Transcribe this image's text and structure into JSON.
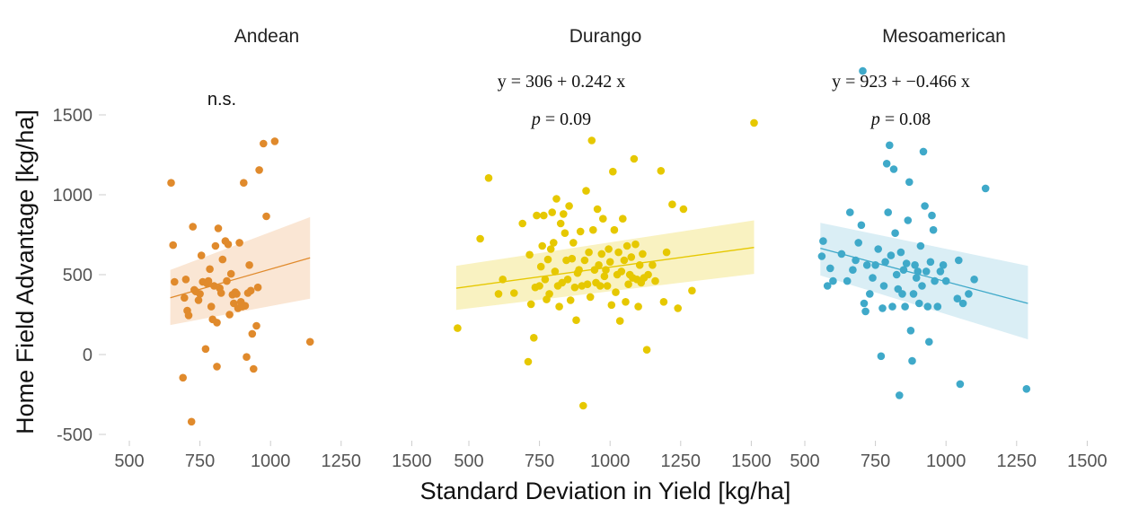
{
  "chart_data": {
    "type": "scatter",
    "xlabel": "Standard Deviation in Yield [kg/ha]",
    "ylabel": "Home Field Advantage [kg/ha]",
    "y_ticks": [
      "1500",
      "1000",
      "500",
      "0",
      "-500"
    ],
    "x_ticks": [
      "500",
      "750",
      "1000",
      "1250",
      "1500"
    ],
    "xlim": [
      400,
      1500
    ],
    "ylim": [
      -570,
      1900
    ],
    "grid": false,
    "legend": "none",
    "panels": [
      {
        "title": "Andean",
        "color": "#E08A2C",
        "band_color": "#F9E2CC",
        "annotation": "n.s.",
        "fit": {
          "x": [
            645,
            1140
          ],
          "y": [
            355,
            605
          ],
          "lo": [
            185,
            350
          ],
          "hi": [
            530,
            860
          ]
        },
        "points": [
          [
            648,
            1075
          ],
          [
            655,
            685
          ],
          [
            660,
            455
          ],
          [
            690,
            -145
          ],
          [
            695,
            355
          ],
          [
            700,
            470
          ],
          [
            705,
            275
          ],
          [
            710,
            245
          ],
          [
            720,
            -420
          ],
          [
            725,
            800
          ],
          [
            730,
            405
          ],
          [
            735,
            395
          ],
          [
            745,
            340
          ],
          [
            750,
            380
          ],
          [
            755,
            620
          ],
          [
            760,
            455
          ],
          [
            770,
            35
          ],
          [
            775,
            445
          ],
          [
            780,
            460
          ],
          [
            785,
            535
          ],
          [
            790,
            300
          ],
          [
            795,
            220
          ],
          [
            800,
            430
          ],
          [
            805,
            680
          ],
          [
            810,
            -75
          ],
          [
            810,
            200
          ],
          [
            815,
            790
          ],
          [
            820,
            415
          ],
          [
            825,
            385
          ],
          [
            830,
            595
          ],
          [
            840,
            710
          ],
          [
            845,
            460
          ],
          [
            850,
            690
          ],
          [
            855,
            250
          ],
          [
            860,
            505
          ],
          [
            865,
            375
          ],
          [
            870,
            320
          ],
          [
            875,
            390
          ],
          [
            880,
            380
          ],
          [
            885,
            290
          ],
          [
            890,
            700
          ],
          [
            895,
            330
          ],
          [
            900,
            300
          ],
          [
            905,
            1075
          ],
          [
            910,
            305
          ],
          [
            915,
            -15
          ],
          [
            920,
            385
          ],
          [
            925,
            560
          ],
          [
            930,
            400
          ],
          [
            935,
            130
          ],
          [
            940,
            -90
          ],
          [
            950,
            180
          ],
          [
            955,
            420
          ],
          [
            960,
            1155
          ],
          [
            975,
            1320
          ],
          [
            985,
            865
          ],
          [
            1015,
            1335
          ],
          [
            1140,
            80
          ]
        ]
      },
      {
        "title": "Durango",
        "color": "#E6C800",
        "band_color": "#F8F0B6",
        "annotation_eq": [
          "y = 306 + ",
          "0.242",
          " x"
        ],
        "annotation_p": [
          "p",
          " = 0.09"
        ],
        "fit": {
          "x": [
            455,
            1510
          ],
          "y": [
            415,
            670
          ],
          "lo": [
            280,
            505
          ],
          "hi": [
            555,
            840
          ]
        },
        "points": [
          [
            460,
            165
          ],
          [
            540,
            725
          ],
          [
            570,
            1105
          ],
          [
            605,
            380
          ],
          [
            620,
            470
          ],
          [
            660,
            385
          ],
          [
            690,
            820
          ],
          [
            710,
            -45
          ],
          [
            715,
            625
          ],
          [
            720,
            315
          ],
          [
            730,
            105
          ],
          [
            735,
            420
          ],
          [
            740,
            870
          ],
          [
            750,
            430
          ],
          [
            755,
            550
          ],
          [
            760,
            680
          ],
          [
            765,
            870
          ],
          [
            770,
            470
          ],
          [
            775,
            345
          ],
          [
            780,
            595
          ],
          [
            785,
            380
          ],
          [
            790,
            660
          ],
          [
            795,
            890
          ],
          [
            800,
            700
          ],
          [
            805,
            520
          ],
          [
            810,
            975
          ],
          [
            815,
            430
          ],
          [
            820,
            300
          ],
          [
            825,
            820
          ],
          [
            830,
            450
          ],
          [
            835,
            880
          ],
          [
            840,
            760
          ],
          [
            845,
            590
          ],
          [
            850,
            470
          ],
          [
            855,
            930
          ],
          [
            860,
            340
          ],
          [
            865,
            600
          ],
          [
            870,
            700
          ],
          [
            875,
            420
          ],
          [
            880,
            215
          ],
          [
            885,
            510
          ],
          [
            890,
            530
          ],
          [
            895,
            770
          ],
          [
            900,
            430
          ],
          [
            905,
            -320
          ],
          [
            910,
            590
          ],
          [
            915,
            1025
          ],
          [
            920,
            440
          ],
          [
            925,
            640
          ],
          [
            930,
            360
          ],
          [
            935,
            1340
          ],
          [
            940,
            780
          ],
          [
            945,
            530
          ],
          [
            950,
            450
          ],
          [
            955,
            910
          ],
          [
            960,
            560
          ],
          [
            965,
            430
          ],
          [
            970,
            630
          ],
          [
            975,
            850
          ],
          [
            980,
            490
          ],
          [
            985,
            530
          ],
          [
            990,
            430
          ],
          [
            995,
            660
          ],
          [
            1000,
            580
          ],
          [
            1005,
            310
          ],
          [
            1010,
            1145
          ],
          [
            1015,
            780
          ],
          [
            1020,
            390
          ],
          [
            1025,
            500
          ],
          [
            1030,
            640
          ],
          [
            1035,
            210
          ],
          [
            1040,
            520
          ],
          [
            1045,
            850
          ],
          [
            1050,
            590
          ],
          [
            1055,
            330
          ],
          [
            1060,
            680
          ],
          [
            1065,
            440
          ],
          [
            1070,
            500
          ],
          [
            1075,
            610
          ],
          [
            1080,
            480
          ],
          [
            1085,
            1225
          ],
          [
            1090,
            690
          ],
          [
            1095,
            470
          ],
          [
            1100,
            300
          ],
          [
            1105,
            560
          ],
          [
            1110,
            450
          ],
          [
            1115,
            630
          ],
          [
            1120,
            480
          ],
          [
            1130,
            30
          ],
          [
            1135,
            500
          ],
          [
            1150,
            560
          ],
          [
            1160,
            460
          ],
          [
            1180,
            1150
          ],
          [
            1190,
            330
          ],
          [
            1200,
            640
          ],
          [
            1220,
            940
          ],
          [
            1240,
            290
          ],
          [
            1260,
            910
          ],
          [
            1290,
            400
          ],
          [
            1510,
            1450
          ]
        ]
      },
      {
        "title": "Mesoamerican",
        "color": "#3FA9C9",
        "band_color": "#D3EBF3",
        "annotation_eq": [
          "y = 923 + ",
          "−0.466",
          " x"
        ],
        "annotation_p": [
          "p",
          " = 0.08"
        ],
        "fit": {
          "x": [
            555,
            1290
          ],
          "y": [
            665,
            320
          ],
          "lo": [
            495,
            95
          ],
          "hi": [
            825,
            555
          ]
        },
        "points": [
          [
            560,
            615
          ],
          [
            565,
            710
          ],
          [
            580,
            430
          ],
          [
            590,
            540
          ],
          [
            600,
            460
          ],
          [
            630,
            630
          ],
          [
            650,
            460
          ],
          [
            660,
            890
          ],
          [
            670,
            530
          ],
          [
            680,
            590
          ],
          [
            690,
            700
          ],
          [
            700,
            810
          ],
          [
            705,
            1775
          ],
          [
            710,
            320
          ],
          [
            715,
            270
          ],
          [
            720,
            560
          ],
          [
            730,
            380
          ],
          [
            740,
            480
          ],
          [
            750,
            560
          ],
          [
            760,
            660
          ],
          [
            770,
            -10
          ],
          [
            775,
            290
          ],
          [
            780,
            430
          ],
          [
            785,
            580
          ],
          [
            790,
            1195
          ],
          [
            795,
            890
          ],
          [
            800,
            1310
          ],
          [
            805,
            620
          ],
          [
            810,
            300
          ],
          [
            815,
            1160
          ],
          [
            820,
            760
          ],
          [
            825,
            500
          ],
          [
            830,
            410
          ],
          [
            835,
            -255
          ],
          [
            840,
            640
          ],
          [
            845,
            380
          ],
          [
            850,
            530
          ],
          [
            855,
            300
          ],
          [
            860,
            570
          ],
          [
            865,
            840
          ],
          [
            870,
            1080
          ],
          [
            875,
            150
          ],
          [
            880,
            -40
          ],
          [
            885,
            380
          ],
          [
            890,
            560
          ],
          [
            895,
            480
          ],
          [
            900,
            520
          ],
          [
            905,
            320
          ],
          [
            910,
            680
          ],
          [
            915,
            430
          ],
          [
            920,
            1270
          ],
          [
            925,
            930
          ],
          [
            930,
            520
          ],
          [
            935,
            300
          ],
          [
            940,
            80
          ],
          [
            945,
            580
          ],
          [
            950,
            870
          ],
          [
            955,
            780
          ],
          [
            960,
            460
          ],
          [
            970,
            300
          ],
          [
            980,
            520
          ],
          [
            990,
            560
          ],
          [
            1000,
            460
          ],
          [
            1040,
            350
          ],
          [
            1045,
            590
          ],
          [
            1050,
            -185
          ],
          [
            1060,
            320
          ],
          [
            1080,
            380
          ],
          [
            1100,
            470
          ],
          [
            1140,
            1040
          ],
          [
            1285,
            -215
          ]
        ]
      }
    ]
  }
}
